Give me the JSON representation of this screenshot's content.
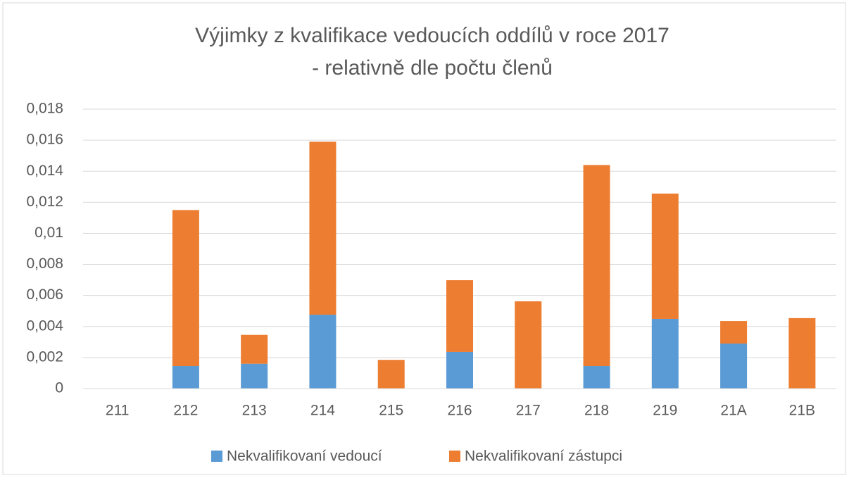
{
  "chart_data": {
    "type": "stacked_bar",
    "title": [
      "Výjimky z kvalifikace vedoucích oddílů v roce 2017",
      "- relativně dle počtu členů"
    ],
    "categories": [
      "211",
      "212",
      "213",
      "214",
      "215",
      "216",
      "217",
      "218",
      "219",
      "21A",
      "21B"
    ],
    "series": [
      {
        "name": "Nekvalifikovaní vedoucí",
        "color": "#5b9bd5",
        "values": [
          0,
          0.00145,
          0.0016,
          0.00476,
          0,
          0.00236,
          0,
          0.00145,
          0.00449,
          0.0029,
          0
        ]
      },
      {
        "name": "Nekvalifikovaní zástupci",
        "color": "#ed7d31",
        "values": [
          0,
          0.01005,
          0.00186,
          0.01114,
          0.00185,
          0.00462,
          0.00562,
          0.01295,
          0.00807,
          0.00145,
          0.00454
        ]
      }
    ],
    "ylim": [
      0,
      0.018
    ],
    "yticks": [
      0,
      {
        "value": 0.002,
        "label": "0,002"
      },
      {
        "value": 0.004,
        "label": "0,004"
      },
      {
        "value": 0.006,
        "label": "0,006"
      },
      {
        "value": 0.008,
        "label": "0,008"
      },
      {
        "value": 0.01,
        "label": "0,01"
      },
      {
        "value": 0.012,
        "label": "0,012"
      },
      {
        "value": 0.014,
        "label": "0,014"
      },
      {
        "value": 0.016,
        "label": "0,016"
      },
      {
        "value": 0.018,
        "label": "0,018"
      }
    ],
    "grid": true,
    "legend": "bottom"
  }
}
